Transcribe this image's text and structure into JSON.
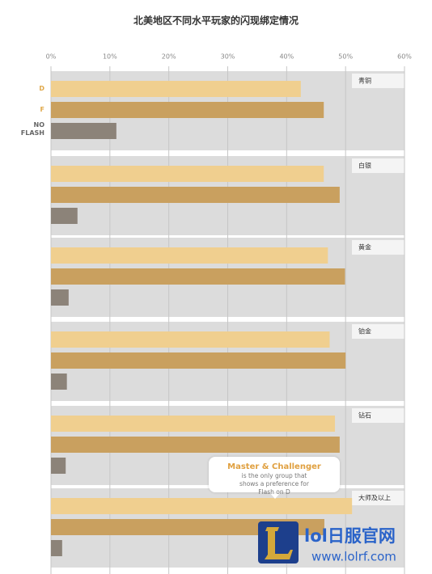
{
  "chart_data": {
    "type": "bar",
    "title": "北美地区不同水平玩家的闪现绑定情况",
    "categories": [
      "青铜",
      "白银",
      "黄金",
      "铂金",
      "钻石",
      "大师及以上"
    ],
    "series": [
      {
        "name": "D",
        "color": "#f0cf8f",
        "values": [
          42.4,
          46.3,
          47.0,
          47.3,
          48.2,
          51.1
        ]
      },
      {
        "name": "F",
        "color": "#c9a05f",
        "values": [
          46.3,
          49.0,
          49.9,
          50.0,
          49.0,
          46.4
        ]
      },
      {
        "name": "NO FLASH",
        "color": "#8c8379",
        "values": [
          11.1,
          4.5,
          3.0,
          2.7,
          2.5,
          1.9
        ]
      }
    ],
    "xlim": [
      0,
      60
    ],
    "xticks": [
      {
        "value": 0,
        "label": "0%"
      },
      {
        "value": 10,
        "label": "10%"
      },
      {
        "value": 20,
        "label": "20%"
      },
      {
        "value": 30,
        "label": "30%"
      },
      {
        "value": 40,
        "label": "40%"
      },
      {
        "value": 50,
        "label": "50%"
      },
      {
        "value": 60,
        "label": "60%"
      }
    ],
    "grid": true,
    "annotation": {
      "title": "Master & Challenger",
      "text": "is the only group that shows a preference for Flash on D"
    }
  },
  "watermark": {
    "site_name": "lol日服官网",
    "url": "www.lolrf.com"
  }
}
